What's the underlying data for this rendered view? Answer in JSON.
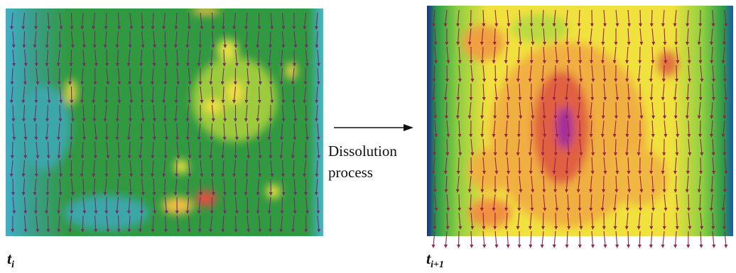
{
  "caption": {
    "arrow_text": [
      "Dissolution",
      "process"
    ]
  },
  "panels": [
    {
      "label": {
        "base": "t",
        "sub": "i"
      }
    },
    {
      "label": {
        "base": "t",
        "sub": "i+1"
      }
    }
  ]
}
